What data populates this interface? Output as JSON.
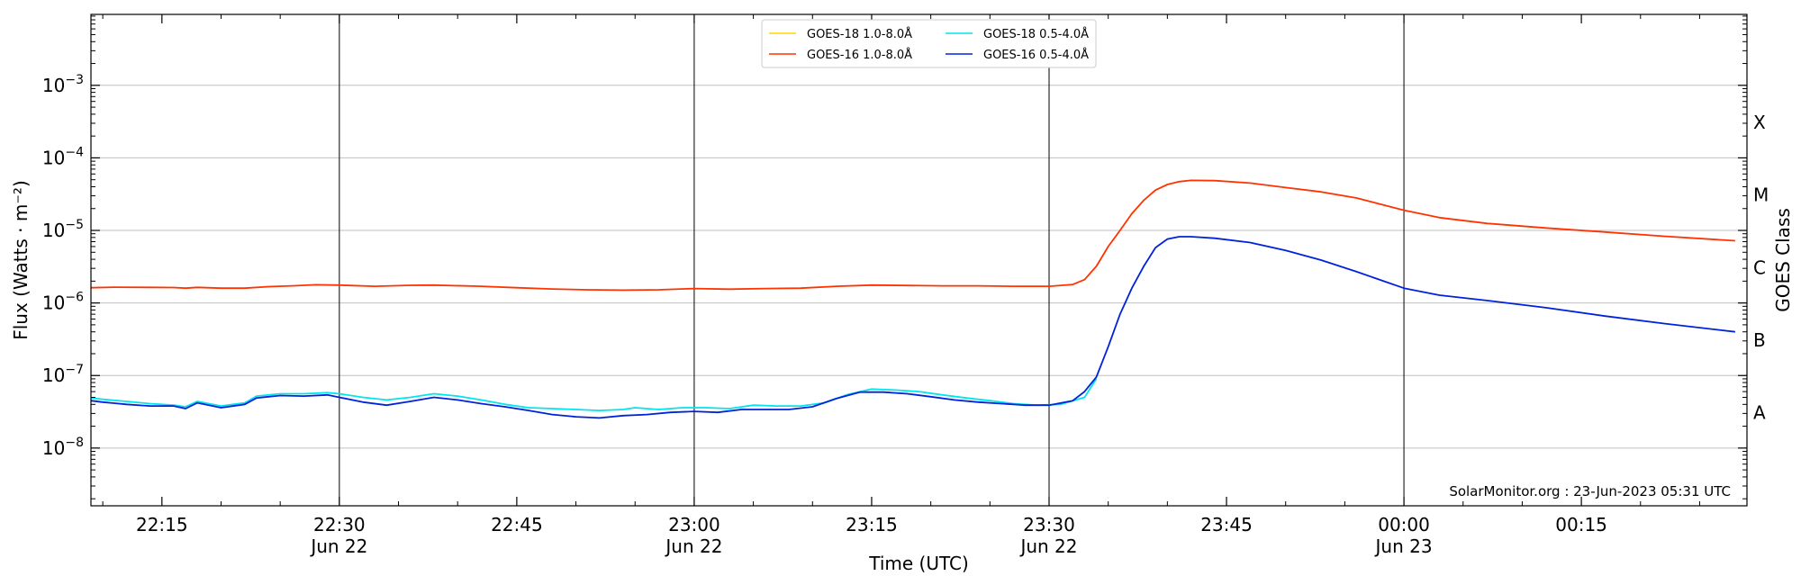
{
  "chart_data": {
    "type": "line",
    "xlabel": "Time (UTC)",
    "ylabel": "Flux (Watts · m⁻²)",
    "right_label": "GOES Class",
    "y_scale": "log",
    "ylim": [
      1.6e-09,
      0.0095
    ],
    "xlim": [
      "2023-06-22T22:09",
      "2023-06-23T00:29"
    ],
    "grid": "horizontal at decades",
    "legend_placement": "top-center",
    "footer": "SolarMonitor.org : 23-Jun-2023 05:31 UTC",
    "y_ticks": [
      {
        "value": 1e-08,
        "base": "10",
        "exp": "−8"
      },
      {
        "value": 1e-07,
        "base": "10",
        "exp": "−7"
      },
      {
        "value": 1e-06,
        "base": "10",
        "exp": "−6"
      },
      {
        "value": 1e-05,
        "base": "10",
        "exp": "−5"
      },
      {
        "value": 0.0001,
        "base": "10",
        "exp": "−4"
      },
      {
        "value": 0.001,
        "base": "10",
        "exp": "−3"
      }
    ],
    "x_ticks": [
      {
        "time": "22:15",
        "date": ""
      },
      {
        "time": "22:30",
        "date": "Jun 22"
      },
      {
        "time": "22:45",
        "date": ""
      },
      {
        "time": "23:00",
        "date": "Jun 22"
      },
      {
        "time": "23:15",
        "date": ""
      },
      {
        "time": "23:30",
        "date": "Jun 22"
      },
      {
        "time": "23:45",
        "date": ""
      },
      {
        "time": "00:00",
        "date": "Jun 23"
      },
      {
        "time": "00:15",
        "date": ""
      }
    ],
    "vertical_lines": [
      "22:30",
      "23:00",
      "23:30",
      "00:00"
    ],
    "class_labels": [
      {
        "label": "A",
        "value": 3.16e-08
      },
      {
        "label": "B",
        "value": 3.16e-07
      },
      {
        "label": "C",
        "value": 3.16e-06
      },
      {
        "label": "M",
        "value": 3.16e-05
      },
      {
        "label": "X",
        "value": 0.000316
      }
    ],
    "series": [
      {
        "name": "GOES-18 1.0-8.0Å",
        "color": "#ffd700",
        "points": []
      },
      {
        "name": "GOES-18 0.5-4.0Å",
        "color": "#00e5ee",
        "points": [
          [
            "22:09",
            4.9e-08
          ],
          [
            "22:10",
            4.7e-08
          ],
          [
            "22:12",
            4.4e-08
          ],
          [
            "22:14",
            4.1e-08
          ],
          [
            "22:16",
            3.9e-08
          ],
          [
            "22:17",
            3.7e-08
          ],
          [
            "22:18",
            4.4e-08
          ],
          [
            "22:20",
            3.8e-08
          ],
          [
            "22:22",
            4.2e-08
          ],
          [
            "22:23",
            5.2e-08
          ],
          [
            "22:25",
            5.6e-08
          ],
          [
            "22:27",
            5.6e-08
          ],
          [
            "22:29",
            5.8e-08
          ],
          [
            "22:30",
            5.6e-08
          ],
          [
            "22:32",
            5e-08
          ],
          [
            "22:34",
            4.6e-08
          ],
          [
            "22:36",
            5e-08
          ],
          [
            "22:38",
            5.6e-08
          ],
          [
            "22:40",
            5.2e-08
          ],
          [
            "22:42",
            4.6e-08
          ],
          [
            "22:44",
            4e-08
          ],
          [
            "22:46",
            3.6e-08
          ],
          [
            "22:48",
            3.5e-08
          ],
          [
            "22:50",
            3.4e-08
          ],
          [
            "22:52",
            3.3e-08
          ],
          [
            "22:54",
            3.4e-08
          ],
          [
            "22:55",
            3.6e-08
          ],
          [
            "22:57",
            3.4e-08
          ],
          [
            "22:59",
            3.6e-08
          ],
          [
            "23:01",
            3.6e-08
          ],
          [
            "23:03",
            3.5e-08
          ],
          [
            "23:05",
            3.9e-08
          ],
          [
            "23:07",
            3.8e-08
          ],
          [
            "23:09",
            3.8e-08
          ],
          [
            "23:11",
            4.2e-08
          ],
          [
            "23:13",
            5.5e-08
          ],
          [
            "23:15",
            6.5e-08
          ],
          [
            "23:17",
            6.3e-08
          ],
          [
            "23:19",
            6e-08
          ],
          [
            "23:21",
            5.4e-08
          ],
          [
            "23:23",
            4.9e-08
          ],
          [
            "23:25",
            4.5e-08
          ],
          [
            "23:27",
            4.1e-08
          ],
          [
            "23:29",
            3.9e-08
          ],
          [
            "23:31",
            4e-08
          ],
          [
            "23:33",
            5e-08
          ],
          [
            "23:34",
            9e-08
          ]
        ]
      },
      {
        "name": "GOES-16 1.0-8.0Å",
        "color": "#ff3300",
        "points": [
          [
            "22:09",
            1.62e-06
          ],
          [
            "22:11",
            1.65e-06
          ],
          [
            "22:14",
            1.64e-06
          ],
          [
            "22:16",
            1.63e-06
          ],
          [
            "22:17",
            1.6e-06
          ],
          [
            "22:18",
            1.64e-06
          ],
          [
            "22:20",
            1.6e-06
          ],
          [
            "22:22",
            1.6e-06
          ],
          [
            "22:24",
            1.68e-06
          ],
          [
            "22:26",
            1.72e-06
          ],
          [
            "22:28",
            1.78e-06
          ],
          [
            "22:30",
            1.76e-06
          ],
          [
            "22:33",
            1.7e-06
          ],
          [
            "22:36",
            1.75e-06
          ],
          [
            "22:38",
            1.76e-06
          ],
          [
            "22:42",
            1.7e-06
          ],
          [
            "22:45",
            1.62e-06
          ],
          [
            "22:48",
            1.56e-06
          ],
          [
            "22:51",
            1.52e-06
          ],
          [
            "22:54",
            1.5e-06
          ],
          [
            "22:57",
            1.52e-06
          ],
          [
            "23:00",
            1.58e-06
          ],
          [
            "23:03",
            1.55e-06
          ],
          [
            "23:06",
            1.58e-06
          ],
          [
            "23:09",
            1.6e-06
          ],
          [
            "23:12",
            1.7e-06
          ],
          [
            "23:15",
            1.76e-06
          ],
          [
            "23:18",
            1.74e-06
          ],
          [
            "23:21",
            1.72e-06
          ],
          [
            "23:24",
            1.72e-06
          ],
          [
            "23:27",
            1.7e-06
          ],
          [
            "23:30",
            1.7e-06
          ],
          [
            "23:32",
            1.8e-06
          ],
          [
            "23:33",
            2.1e-06
          ],
          [
            "23:34",
            3.2e-06
          ],
          [
            "23:35",
            6e-06
          ],
          [
            "23:36",
            1e-05
          ],
          [
            "23:37",
            1.7e-05
          ],
          [
            "23:38",
            2.6e-05
          ],
          [
            "23:39",
            3.6e-05
          ],
          [
            "23:40",
            4.3e-05
          ],
          [
            "23:41",
            4.7e-05
          ],
          [
            "23:42",
            4.9e-05
          ],
          [
            "23:44",
            4.85e-05
          ],
          [
            "23:47",
            4.5e-05
          ],
          [
            "23:50",
            3.9e-05
          ],
          [
            "23:53",
            3.4e-05
          ],
          [
            "23:56",
            2.8e-05
          ],
          [
            "00:00",
            1.9e-05
          ],
          [
            "00:03",
            1.5e-05
          ],
          [
            "00:07",
            1.25e-05
          ],
          [
            "00:12",
            1.08e-05
          ],
          [
            "00:17",
            9.5e-06
          ],
          [
            "00:22",
            8.3e-06
          ],
          [
            "00:28",
            7.2e-06
          ]
        ]
      },
      {
        "name": "GOES-16 0.5-4.0Å",
        "color": "#0022dd",
        "points": [
          [
            "22:09",
            4.5e-08
          ],
          [
            "22:10",
            4.3e-08
          ],
          [
            "22:12",
            4e-08
          ],
          [
            "22:14",
            3.8e-08
          ],
          [
            "22:16",
            3.8e-08
          ],
          [
            "22:17",
            3.5e-08
          ],
          [
            "22:18",
            4.2e-08
          ],
          [
            "22:20",
            3.6e-08
          ],
          [
            "22:22",
            4e-08
          ],
          [
            "22:23",
            4.9e-08
          ],
          [
            "22:25",
            5.3e-08
          ],
          [
            "22:27",
            5.2e-08
          ],
          [
            "22:29",
            5.4e-08
          ],
          [
            "22:30",
            5e-08
          ],
          [
            "22:32",
            4.3e-08
          ],
          [
            "22:34",
            3.9e-08
          ],
          [
            "22:36",
            4.4e-08
          ],
          [
            "22:38",
            5e-08
          ],
          [
            "22:40",
            4.6e-08
          ],
          [
            "22:42",
            4.1e-08
          ],
          [
            "22:44",
            3.7e-08
          ],
          [
            "22:46",
            3.3e-08
          ],
          [
            "22:48",
            2.9e-08
          ],
          [
            "22:50",
            2.7e-08
          ],
          [
            "22:52",
            2.6e-08
          ],
          [
            "22:54",
            2.8e-08
          ],
          [
            "22:56",
            2.9e-08
          ],
          [
            "22:58",
            3.1e-08
          ],
          [
            "23:00",
            3.2e-08
          ],
          [
            "23:02",
            3.1e-08
          ],
          [
            "23:04",
            3.4e-08
          ],
          [
            "23:06",
            3.4e-08
          ],
          [
            "23:08",
            3.4e-08
          ],
          [
            "23:10",
            3.7e-08
          ],
          [
            "23:12",
            4.8e-08
          ],
          [
            "23:14",
            5.9e-08
          ],
          [
            "23:16",
            5.9e-08
          ],
          [
            "23:18",
            5.6e-08
          ],
          [
            "23:20",
            5.1e-08
          ],
          [
            "23:22",
            4.6e-08
          ],
          [
            "23:24",
            4.3e-08
          ],
          [
            "23:26",
            4.1e-08
          ],
          [
            "23:28",
            3.9e-08
          ],
          [
            "23:30",
            3.9e-08
          ],
          [
            "23:32",
            4.5e-08
          ],
          [
            "23:33",
            6e-08
          ],
          [
            "23:34",
            9.5e-08
          ],
          [
            "23:35",
            2.5e-07
          ],
          [
            "23:36",
            7e-07
          ],
          [
            "23:37",
            1.6e-06
          ],
          [
            "23:38",
            3.2e-06
          ],
          [
            "23:39",
            5.8e-06
          ],
          [
            "23:40",
            7.6e-06
          ],
          [
            "23:41",
            8.2e-06
          ],
          [
            "23:42",
            8.2e-06
          ],
          [
            "23:44",
            7.8e-06
          ],
          [
            "23:47",
            6.8e-06
          ],
          [
            "23:50",
            5.3e-06
          ],
          [
            "23:53",
            3.9e-06
          ],
          [
            "23:56",
            2.7e-06
          ],
          [
            "00:00",
            1.6e-06
          ],
          [
            "00:03",
            1.28e-06
          ],
          [
            "00:07",
            1.08e-06
          ],
          [
            "00:12",
            8.6e-07
          ],
          [
            "00:17",
            6.6e-07
          ],
          [
            "00:22",
            5.2e-07
          ],
          [
            "00:28",
            4e-07
          ]
        ]
      }
    ]
  }
}
